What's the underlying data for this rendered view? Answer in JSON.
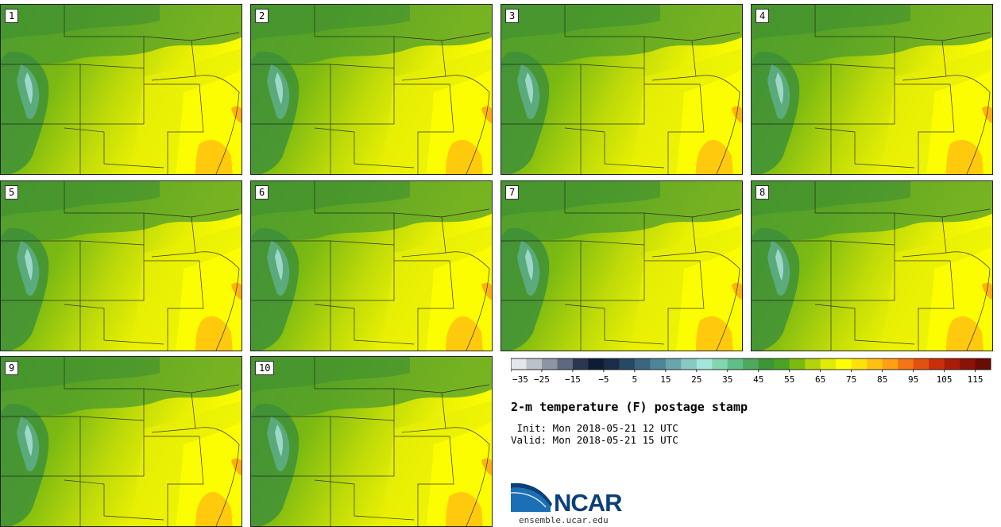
{
  "panels": [
    {
      "label": "1"
    },
    {
      "label": "2"
    },
    {
      "label": "3"
    },
    {
      "label": "4"
    },
    {
      "label": "5"
    },
    {
      "label": "6"
    },
    {
      "label": "7"
    },
    {
      "label": "8"
    },
    {
      "label": "9"
    },
    {
      "label": "10"
    }
  ],
  "colorbar": {
    "colors": [
      "#e4e7ec",
      "#bcc1cb",
      "#8d95a5",
      "#5e6880",
      "#2c3651",
      "#0f1c35",
      "#1a2d48",
      "#274a63",
      "#3a6680",
      "#4f8596",
      "#6aa5ad",
      "#88c9c4",
      "#a3e6dc",
      "#82d6b0",
      "#62be87",
      "#4ea95c",
      "#3c9632",
      "#4aa323",
      "#7cba10",
      "#b3d30b",
      "#e1ec06",
      "#ffff00",
      "#ffe10a",
      "#ffc110",
      "#ff9f13",
      "#f57413",
      "#e2510f",
      "#c9300a",
      "#aa1c07",
      "#8a1206",
      "#6a0b04"
    ],
    "min": -35,
    "max": 120,
    "step": 5,
    "tick_labels": [
      "−35",
      "−25",
      "−15",
      "−5",
      "5",
      "15",
      "25",
      "35",
      "45",
      "55",
      "65",
      "75",
      "85",
      "95",
      "105",
      "115"
    ]
  },
  "title": "2-m temperature (F) postage stamp",
  "init_line": " Init: Mon 2018-05-21 12 UTC",
  "valid_line": "Valid: Mon 2018-05-21 15 UTC",
  "logo_text": "NCAR",
  "website": "ensemble.ucar.edu"
}
